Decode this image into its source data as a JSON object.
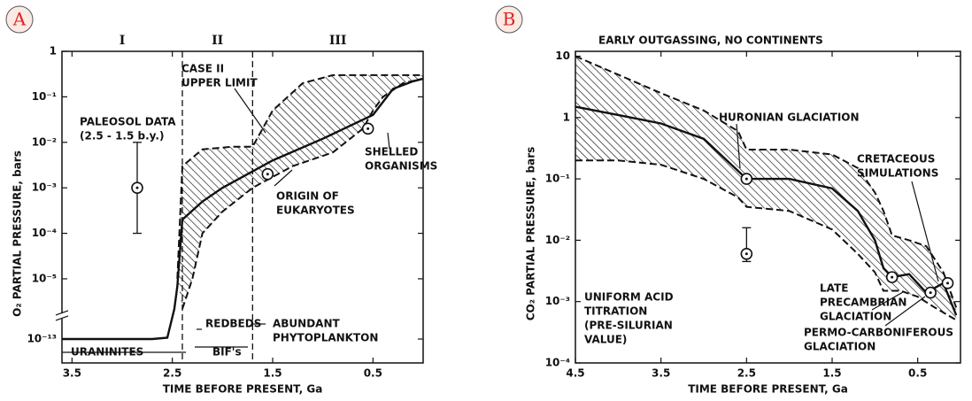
{
  "chart_data": [
    {
      "type": "line",
      "panel_label": "A",
      "xlabel": "TIME BEFORE PRESENT, Ga",
      "ylabel": "O₂ PARTIAL PRESSURE, bars",
      "xlim": [
        3.6,
        0
      ],
      "xticks": [
        3.5,
        2.5,
        1.5,
        0.5
      ],
      "ylim": [
        1e-13,
        1
      ],
      "log_y": true,
      "axis_break": true,
      "yticks": [
        {
          "value": 1e-13,
          "label": "10⁻¹³"
        },
        {
          "value": 1e-05,
          "label": "10⁻⁵"
        },
        {
          "value": 0.0001,
          "label": "10⁻⁴"
        },
        {
          "value": 0.001,
          "label": "10⁻³"
        },
        {
          "value": 0.01,
          "label": "10⁻²"
        },
        {
          "value": 0.1,
          "label": "10⁻¹"
        },
        1
      ],
      "vlines": [
        2.4,
        1.7
      ],
      "hatch_between": [
        1,
        2
      ],
      "series": [
        {
          "line": "solid",
          "x": [
            3.6,
            3.0,
            2.7,
            2.55,
            2.48,
            2.45,
            2.4,
            2.2,
            2.0,
            1.5,
            1.0,
            0.5,
            0.3,
            0.1,
            0
          ],
          "values": [
            1e-13,
            1e-13,
            1e-13,
            1.5e-13,
            1e-09,
            1e-06,
            0.0002,
            0.0005,
            0.001,
            0.004,
            0.012,
            0.04,
            0.15,
            0.22,
            0.25
          ]
        },
        {
          "line": "dashed",
          "x": [
            2.45,
            2.4,
            2.2,
            1.9,
            1.7,
            1.5,
            1.2,
            0.9,
            0.5,
            0
          ],
          "values": [
            1e-05,
            0.003,
            0.007,
            0.008,
            0.008,
            0.05,
            0.2,
            0.3,
            0.3,
            0.3
          ]
        },
        {
          "line": "dashed",
          "x": [
            2.4,
            2.3,
            2.2,
            2.0,
            1.7,
            1.3,
            0.9,
            0.6,
            0.5,
            0.4,
            0.2,
            0
          ],
          "values": [
            1e-09,
            1e-05,
            0.0001,
            0.0003,
            0.001,
            0.003,
            0.006,
            0.02,
            0.05,
            0.1,
            0.2,
            0.25
          ]
        }
      ],
      "points": [
        {
          "x": 2.85,
          "y": 0.001,
          "err": [
            0.0001,
            0.01
          ]
        },
        {
          "x": 1.55,
          "y": 0.002
        },
        {
          "x": 0.55,
          "y": 0.02
        }
      ],
      "region_labels": [
        "I",
        "II",
        "III"
      ],
      "annotations": [
        {
          "lines": [
            "CASE II",
            "UPPER LIMIT"
          ]
        },
        {
          "lines": [
            "PALEOSOL DATA",
            "(2.5 - 1.5 b.y.)"
          ]
        },
        {
          "lines": [
            "ORIGIN OF",
            "EUKARYOTES"
          ]
        },
        {
          "lines": [
            "SHELLED",
            "ORGANISMS"
          ]
        },
        {
          "lines": [
            "REDBEDS"
          ]
        },
        {
          "lines": [
            "BIF's"
          ]
        },
        {
          "lines": [
            "ABUNDANT",
            "PHYTOPLANKTON"
          ]
        },
        {
          "lines": [
            "URANINITES"
          ]
        }
      ]
    },
    {
      "type": "line",
      "panel_label": "B",
      "xlabel": "TIME BEFORE PRESENT, Ga",
      "ylabel": "CO₂ PARTIAL PRESSURE, bars",
      "xlim": [
        4.5,
        0
      ],
      "xticks": [
        4.5,
        3.5,
        2.5,
        1.5,
        0.5
      ],
      "ylim": [
        0.0001,
        12
      ],
      "log_y": true,
      "yticks": [
        {
          "value": 0.0001,
          "label": "10⁻⁴"
        },
        {
          "value": 0.001,
          "label": "10⁻³"
        },
        {
          "value": 0.01,
          "label": "10⁻²"
        },
        {
          "value": 0.1,
          "label": "10⁻¹"
        },
        1,
        10
      ],
      "vlines": [],
      "hatch_between": [
        1,
        2
      ],
      "series": [
        {
          "line": "solid",
          "x": [
            4.5,
            4.0,
            3.5,
            3.0,
            2.5,
            2.0,
            1.5,
            1.2,
            1.0,
            0.9,
            0.8,
            0.6,
            0.4,
            0.2,
            0.05
          ],
          "values": [
            1.5,
            1.1,
            0.8,
            0.45,
            0.1,
            0.1,
            0.07,
            0.03,
            0.01,
            0.0035,
            0.0025,
            0.0028,
            0.0014,
            0.002,
            0.0006
          ]
        },
        {
          "line": "dashed",
          "x": [
            4.5,
            4.0,
            3.5,
            3.0,
            2.6,
            2.5,
            2.0,
            1.5,
            1.2,
            1.0,
            0.9,
            0.8,
            0.6,
            0.4,
            0.2,
            0.05
          ],
          "values": [
            10,
            5,
            2.5,
            1.3,
            0.6,
            0.3,
            0.3,
            0.25,
            0.15,
            0.06,
            0.03,
            0.012,
            0.01,
            0.008,
            0.003,
            0.0008
          ]
        },
        {
          "line": "dashed",
          "x": [
            4.5,
            4.0,
            3.5,
            3.0,
            2.6,
            2.5,
            2.0,
            1.5,
            1.2,
            1.0,
            0.9,
            0.7,
            0.5,
            0.3,
            0.05
          ],
          "values": [
            0.2,
            0.2,
            0.17,
            0.1,
            0.05,
            0.035,
            0.03,
            0.015,
            0.006,
            0.003,
            0.0015,
            0.0015,
            0.0012,
            0.0008,
            0.0005
          ]
        }
      ],
      "points": [
        {
          "x": 2.5,
          "y": 0.1
        },
        {
          "x": 2.5,
          "y": 0.006,
          "err": [
            0.0045,
            0.016
          ]
        },
        {
          "x": 0.8,
          "y": 0.0025
        },
        {
          "x": 0.35,
          "y": 0.0014
        },
        {
          "x": 0.15,
          "y": 0.002
        }
      ],
      "region_labels": [],
      "annotations": [
        {
          "lines": [
            "EARLY OUTGASSING, NO CONTINENTS"
          ]
        },
        {
          "lines": [
            "HURONIAN GLACIATION"
          ]
        },
        {
          "lines": [
            "CRETACEOUS",
            "SIMULATIONS"
          ]
        },
        {
          "lines": [
            "LATE",
            "PRECAMBRIAN",
            "GLACIATION"
          ]
        },
        {
          "lines": [
            "PERMO-CARBONIFEROUS",
            "GLACIATION"
          ]
        },
        {
          "lines": [
            "UNIFORM ACID",
            "TITRATION",
            "(PRE-SILURIAN",
            "VALUE)"
          ]
        }
      ]
    }
  ]
}
